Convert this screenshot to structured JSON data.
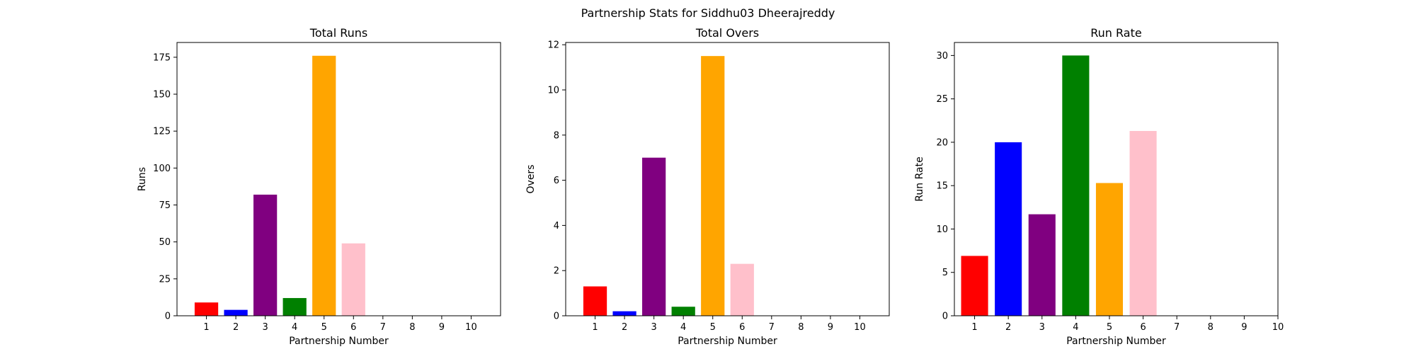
{
  "suptitle": "Partnership Stats for Siddhu03 Dheerajreddy",
  "chart_data": [
    {
      "type": "bar",
      "title": "Total Runs",
      "xlabel": "Partnership Number",
      "ylabel": "Runs",
      "categories": [
        1,
        2,
        3,
        4,
        5,
        6,
        7,
        8,
        9,
        10
      ],
      "values": [
        9,
        4,
        82,
        12,
        176,
        49,
        0,
        0,
        0,
        0
      ],
      "colors": [
        "#ff0000",
        "#0000ff",
        "#800080",
        "#008000",
        "#ffa500",
        "#ffc0cb"
      ],
      "ylim": [
        0,
        185
      ],
      "xlim": [
        0,
        11
      ],
      "yticks": [
        0,
        25,
        50,
        75,
        100,
        125,
        150,
        175
      ],
      "xticks": [
        1,
        2,
        3,
        4,
        5,
        6,
        7,
        8,
        9,
        10
      ]
    },
    {
      "type": "bar",
      "title": "Total Overs",
      "xlabel": "Partnership Number",
      "ylabel": "Overs",
      "categories": [
        1,
        2,
        3,
        4,
        5,
        6,
        7,
        8,
        9,
        10
      ],
      "values": [
        1.3,
        0.2,
        7.0,
        0.4,
        11.5,
        2.3,
        0,
        0,
        0,
        0
      ],
      "colors": [
        "#ff0000",
        "#0000ff",
        "#800080",
        "#008000",
        "#ffa500",
        "#ffc0cb"
      ],
      "ylim": [
        0,
        12.1
      ],
      "xlim": [
        0,
        11
      ],
      "yticks": [
        0,
        2,
        4,
        6,
        8,
        10,
        12
      ],
      "xticks": [
        1,
        2,
        3,
        4,
        5,
        6,
        7,
        8,
        9,
        10
      ]
    },
    {
      "type": "bar",
      "title": "Run Rate",
      "xlabel": "Partnership Number",
      "ylabel": "Run Rate",
      "categories": [
        1,
        2,
        3,
        4,
        5,
        6
      ],
      "values": [
        6.9,
        20.0,
        11.7,
        30.0,
        15.3,
        21.3
      ],
      "colors": [
        "#ff0000",
        "#0000ff",
        "#800080",
        "#008000",
        "#ffa500",
        "#ffc0cb"
      ],
      "ylim": [
        0,
        31.5
      ],
      "xlim": [
        0.4,
        10
      ],
      "yticks": [
        0,
        5,
        10,
        15,
        20,
        25,
        30
      ],
      "xticks": [
        1,
        2,
        3,
        4,
        5,
        6,
        7,
        8,
        9,
        10
      ]
    }
  ]
}
